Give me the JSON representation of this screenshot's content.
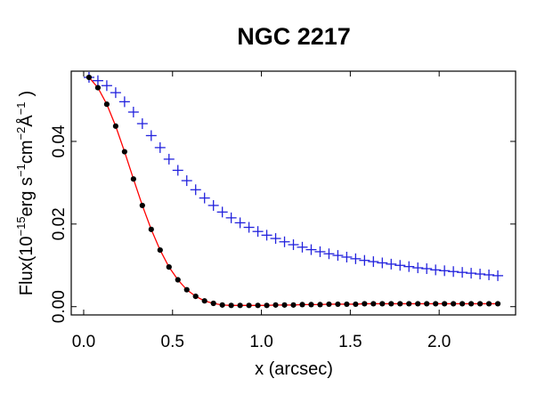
{
  "chart_data": {
    "type": "scatter",
    "title": "NGC 2217",
    "xlabel": "x (arcsec)",
    "ylabel": {
      "prefix": "Flux(10",
      "exp1": "−15",
      "part2": "erg s",
      "exp2": "−1",
      "part3": "cm",
      "exp3": "−2",
      "unit": "Å",
      "exp4": "−1",
      "suffix": ")"
    },
    "xlim": [
      -0.07,
      2.43
    ],
    "ylim": [
      -0.002,
      0.057
    ],
    "xticks": [
      0.0,
      0.5,
      1.0,
      1.5,
      2.0
    ],
    "xtick_labels": [
      "0.0",
      "0.5",
      "1.0",
      "1.5",
      "2.0"
    ],
    "yticks": [
      0.0,
      0.02,
      0.04
    ],
    "ytick_labels": [
      "0.00",
      "0.02",
      "0.04"
    ],
    "colors": {
      "axes": "#000000",
      "points": "#000000",
      "fit": "#ff0000",
      "plus": "#2222dd"
    },
    "series": [
      {
        "name": "plus-markers",
        "marker": "plus",
        "x": [
          0.03,
          0.08,
          0.13,
          0.18,
          0.23,
          0.28,
          0.33,
          0.38,
          0.43,
          0.48,
          0.53,
          0.58,
          0.63,
          0.68,
          0.73,
          0.78,
          0.83,
          0.88,
          0.93,
          0.98,
          1.03,
          1.08,
          1.13,
          1.18,
          1.23,
          1.28,
          1.33,
          1.38,
          1.43,
          1.48,
          1.53,
          1.58,
          1.63,
          1.68,
          1.73,
          1.78,
          1.83,
          1.88,
          1.93,
          1.98,
          2.03,
          2.08,
          2.13,
          2.18,
          2.23,
          2.28,
          2.33
        ],
        "y": [
          0.0555,
          0.0547,
          0.0535,
          0.0518,
          0.0496,
          0.0471,
          0.0443,
          0.0414,
          0.0385,
          0.0357,
          0.033,
          0.0305,
          0.0283,
          0.0263,
          0.0245,
          0.0229,
          0.0215,
          0.0203,
          0.0192,
          0.0182,
          0.0173,
          0.0165,
          0.0157,
          0.015,
          0.0144,
          0.0138,
          0.0133,
          0.0128,
          0.0124,
          0.012,
          0.0116,
          0.0112,
          0.0109,
          0.0106,
          0.0103,
          0.01,
          0.0097,
          0.0094,
          0.0092,
          0.0089,
          0.0087,
          0.0085,
          0.0083,
          0.0081,
          0.0079,
          0.0077,
          0.0075
        ]
      },
      {
        "name": "black-points",
        "marker": "dot",
        "x": [
          0.03,
          0.08,
          0.13,
          0.18,
          0.23,
          0.28,
          0.33,
          0.38,
          0.43,
          0.48,
          0.53,
          0.58,
          0.63,
          0.68,
          0.73,
          0.78,
          0.83,
          0.88,
          0.93,
          0.98,
          1.03,
          1.08,
          1.13,
          1.18,
          1.23,
          1.28,
          1.33,
          1.38,
          1.43,
          1.48,
          1.53,
          1.58,
          1.63,
          1.68,
          1.73,
          1.78,
          1.83,
          1.88,
          1.93,
          1.98,
          2.03,
          2.08,
          2.13,
          2.18,
          2.23,
          2.28,
          2.33
        ],
        "y": [
          0.0555,
          0.053,
          0.049,
          0.0437,
          0.0375,
          0.0309,
          0.0245,
          0.0187,
          0.0137,
          0.0096,
          0.0065,
          0.0041,
          0.0025,
          0.0014,
          0.0008,
          0.0004,
          0.0003,
          0.0003,
          0.0003,
          0.0003,
          0.0003,
          0.0004,
          0.0004,
          0.0004,
          0.0005,
          0.0005,
          0.0005,
          0.0006,
          0.0006,
          0.0006,
          0.0006,
          0.0007,
          0.0007,
          0.0007,
          0.0007,
          0.0007,
          0.0007,
          0.0007,
          0.0007,
          0.0007,
          0.0007,
          0.0007,
          0.0007,
          0.0007,
          0.0007,
          0.0007,
          0.0007
        ]
      },
      {
        "name": "fit-curve",
        "marker": "line",
        "x": [
          0.03,
          0.08,
          0.13,
          0.18,
          0.23,
          0.28,
          0.33,
          0.38,
          0.43,
          0.48,
          0.53,
          0.58,
          0.63,
          0.68,
          0.73,
          0.78,
          0.83,
          0.88,
          0.93,
          0.98,
          1.03,
          1.08,
          1.13,
          1.18,
          1.23,
          1.28,
          1.33,
          1.38,
          1.43,
          1.48,
          1.53,
          1.58,
          1.63,
          1.68,
          1.73,
          1.78,
          1.83,
          1.88,
          1.93,
          1.98,
          2.03,
          2.08,
          2.13,
          2.18,
          2.23,
          2.28,
          2.33
        ],
        "y": [
          0.0555,
          0.053,
          0.049,
          0.0437,
          0.0375,
          0.0309,
          0.0245,
          0.0187,
          0.0137,
          0.0096,
          0.0065,
          0.0041,
          0.0025,
          0.0014,
          0.0008,
          0.0004,
          0.0003,
          0.0003,
          0.0003,
          0.0003,
          0.0003,
          0.0004,
          0.0004,
          0.0004,
          0.0005,
          0.0005,
          0.0005,
          0.0006,
          0.0006,
          0.0006,
          0.0006,
          0.0007,
          0.0007,
          0.0007,
          0.0007,
          0.0007,
          0.0007,
          0.0007,
          0.0007,
          0.0007,
          0.0007,
          0.0007,
          0.0007,
          0.0007,
          0.0007,
          0.0007,
          0.0007
        ]
      }
    ]
  }
}
